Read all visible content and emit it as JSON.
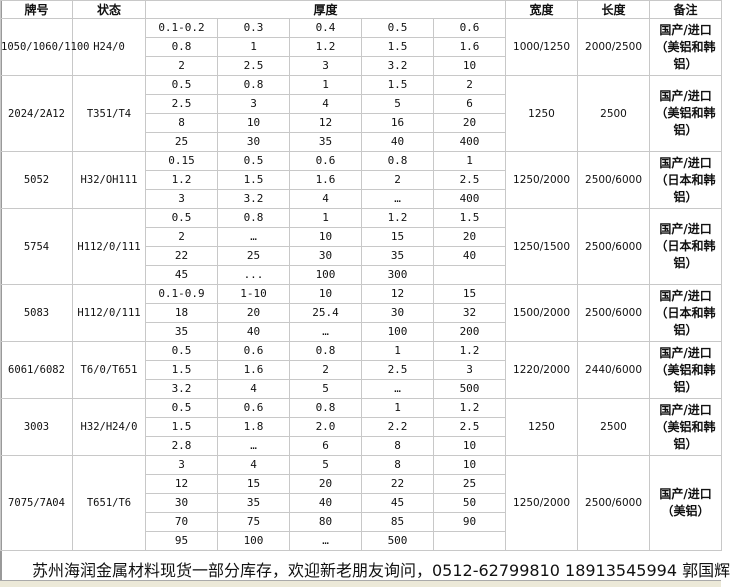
{
  "headers": {
    "brand": "牌号",
    "temper": "状态",
    "thickness": "厚度",
    "width": "宽度",
    "length": "长度",
    "note": "备注"
  },
  "groups": [
    {
      "brand": "1050/1060/1100",
      "temper": "H24/0",
      "rows": [
        [
          "0.1-0.2",
          "0.3",
          "0.4",
          "0.5",
          "0.6"
        ],
        [
          "0.8",
          "1",
          "1.2",
          "1.5",
          "1.6"
        ],
        [
          "2",
          "2.5",
          "3",
          "3.2",
          "10"
        ]
      ],
      "width": "1000/1250",
      "length": "2000/2500",
      "note": "国产/进口（美铝和韩铝）"
    },
    {
      "brand": "2024/2A12",
      "temper": "T351/T4",
      "rows": [
        [
          "0.5",
          "0.8",
          "1",
          "1.5",
          "2"
        ],
        [
          "2.5",
          "3",
          "4",
          "5",
          "6"
        ],
        [
          "8",
          "10",
          "12",
          "16",
          "20"
        ],
        [
          "25",
          "30",
          "35",
          "40",
          "400"
        ]
      ],
      "width": "1250",
      "length": "2500",
      "note": "国产/进口（美铝和韩铝）"
    },
    {
      "brand": "5052",
      "temper": "H32/OH111",
      "rows": [
        [
          "0.15",
          "0.5",
          "0.6",
          "0.8",
          "1"
        ],
        [
          "1.2",
          "1.5",
          "1.6",
          "2",
          "2.5"
        ],
        [
          "3",
          "3.2",
          "4",
          "…",
          "400"
        ]
      ],
      "width": "1250/2000",
      "length": "2500/6000",
      "note": "国产/进口（日本和韩铝）"
    },
    {
      "brand": "5754",
      "temper": "H112/0/111",
      "rows": [
        [
          "0.5",
          "0.8",
          "1",
          "1.2",
          "1.5"
        ],
        [
          "2",
          "…",
          "10",
          "15",
          "20"
        ],
        [
          "22",
          "25",
          "30",
          "35",
          "40"
        ],
        [
          "45",
          "...",
          "100",
          "300",
          ""
        ]
      ],
      "width": "1250/1500",
      "length": "2500/6000",
      "note": "国产/进口（日本和韩铝）"
    },
    {
      "brand": "5083",
      "temper": "H112/0/111",
      "rows": [
        [
          "0.1-0.9",
          "1-10",
          "10",
          "12",
          "15"
        ],
        [
          "18",
          "20",
          "25.4",
          "30",
          "32"
        ],
        [
          "35",
          "40",
          "…",
          "100",
          "200"
        ]
      ],
      "width": "1500/2000",
      "length": "2500/6000",
      "note": "国产/进口（日本和韩铝）"
    },
    {
      "brand": "6061/6082",
      "temper": "T6/0/T651",
      "rows": [
        [
          "0.5",
          "0.6",
          "0.8",
          "1",
          "1.2"
        ],
        [
          "1.5",
          "1.6",
          "2",
          "2.5",
          "3"
        ],
        [
          "3.2",
          "4",
          "5",
          "…",
          "500"
        ]
      ],
      "width": "1220/2000",
      "length": "2440/6000",
      "note": "国产/进口（美铝和韩铝）"
    },
    {
      "brand": "3003",
      "temper": "H32/H24/0",
      "rows": [
        [
          "0.5",
          "0.6",
          "0.8",
          "1",
          "1.2"
        ],
        [
          "1.5",
          "1.8",
          "2.0",
          "2.2",
          "2.5"
        ],
        [
          "2.8",
          "…",
          "6",
          "8",
          "10"
        ]
      ],
      "width": "1250",
      "length": "2500",
      "note": "国产/进口（美铝和韩铝）"
    },
    {
      "brand": "7075/7A04",
      "temper": "T651/T6",
      "rows": [
        [
          "3",
          "4",
          "5",
          "8",
          "10"
        ],
        [
          "12",
          "15",
          "20",
          "22",
          "25"
        ],
        [
          "30",
          "35",
          "40",
          "45",
          "50"
        ],
        [
          "70",
          "75",
          "80",
          "85",
          "90"
        ],
        [
          "95",
          "100",
          "…",
          "500",
          ""
        ]
      ],
      "width": "1250/2000",
      "length": "2500/6000",
      "note": "国产/进口（美铝）"
    }
  ],
  "footer": "苏州海润金属材料现货一部分库存，欢迎新老朋友询问，0512-62799810 18913545994 郭国辉"
}
